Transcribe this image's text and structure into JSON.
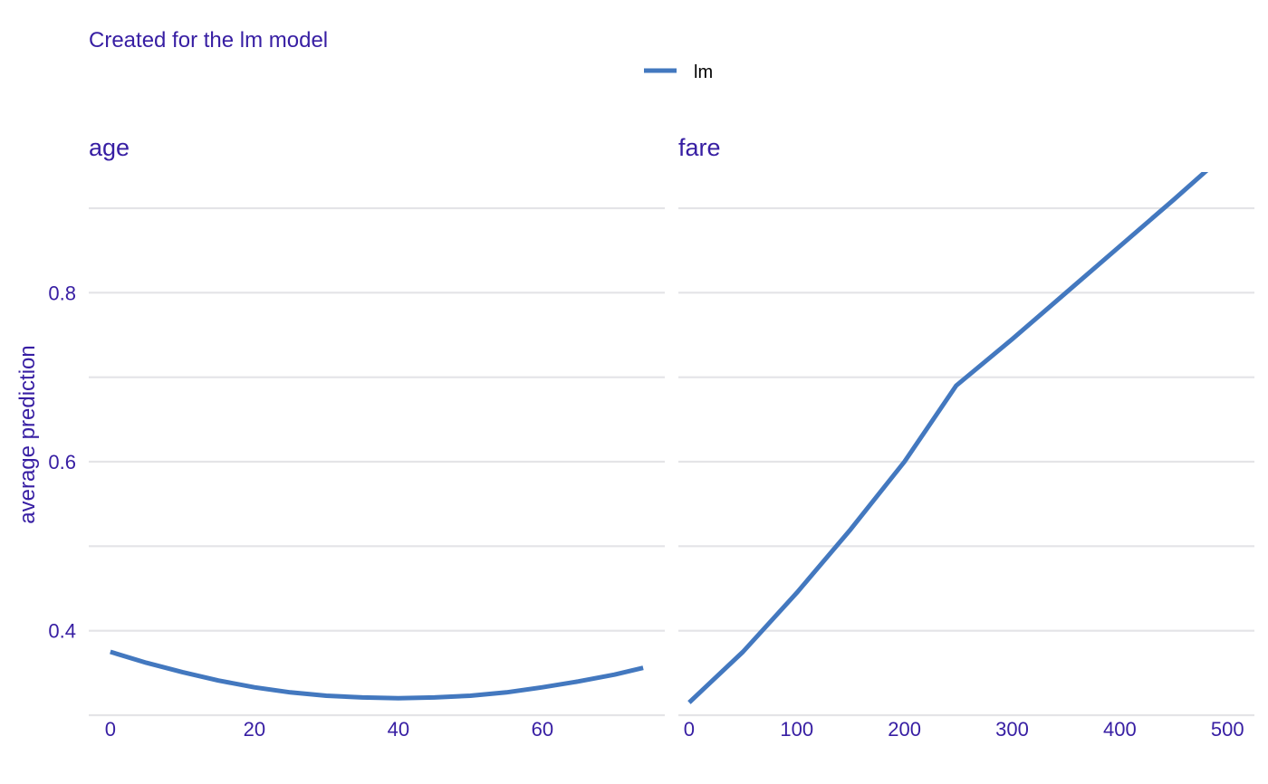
{
  "colors": {
    "text": "#371ea3",
    "legend_text": "#000000",
    "grid": "#e4e4e7",
    "series": "#4378bf",
    "background": "#ffffff"
  },
  "chart_data": {
    "type": "line",
    "subtitle": "Created for the lm model",
    "ylabel": "average prediction",
    "ylim": [
      0.3,
      0.93
    ],
    "y_ticks": [
      0.4,
      0.6,
      0.8
    ],
    "y_tick_labels": [
      "0.4",
      "0.6",
      "0.8"
    ],
    "grid": true,
    "legend": {
      "placement": "top-center",
      "entries": [
        "lm"
      ]
    },
    "panels": [
      {
        "title": "age",
        "xlim": [
          -3,
          77
        ],
        "x_ticks": [
          0,
          20,
          40,
          60
        ],
        "x_tick_labels": [
          "0",
          "20",
          "40",
          "60"
        ],
        "series": [
          {
            "name": "lm",
            "x": [
              0,
              5,
              10,
              15,
              20,
              25,
              30,
              35,
              40,
              45,
              50,
              55,
              60,
              65,
              70,
              74
            ],
            "y": [
              0.375,
              0.362,
              0.351,
              0.341,
              0.333,
              0.327,
              0.323,
              0.321,
              0.32,
              0.321,
              0.323,
              0.327,
              0.333,
              0.34,
              0.348,
              0.356
            ]
          }
        ]
      },
      {
        "title": "fare",
        "xlim": [
          -10,
          525
        ],
        "x_ticks": [
          0,
          100,
          200,
          300,
          400,
          500
        ],
        "x_tick_labels": [
          "0",
          "100",
          "200",
          "300",
          "400",
          "500"
        ],
        "series": [
          {
            "name": "lm",
            "x": [
              0,
              50,
              100,
              150,
              200,
              248,
              300,
              350,
              400,
              450,
              512
            ],
            "y": [
              0.315,
              0.375,
              0.445,
              0.52,
              0.6,
              0.69,
              0.745,
              0.8,
              0.855,
              0.91,
              0.98
            ]
          }
        ]
      }
    ]
  }
}
